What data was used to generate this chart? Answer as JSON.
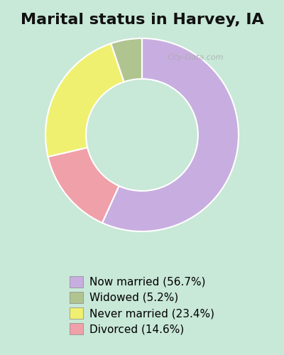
{
  "title": "Marital status in Harvey, IA",
  "slices": [
    56.7,
    5.2,
    23.4,
    14.6
  ],
  "labels": [
    "Now married (56.7%)",
    "Widowed (5.2%)",
    "Never married (23.4%)",
    "Divorced (14.6%)"
  ],
  "colors": [
    "#c8aee0",
    "#b0c490",
    "#f0f070",
    "#f0a0a8"
  ],
  "background_color": "#c8e8d8",
  "chart_bg": "#d8edd8",
  "title_fontsize": 16,
  "legend_fontsize": 11,
  "watermark": "City-Data.com",
  "start_angle": 90
}
